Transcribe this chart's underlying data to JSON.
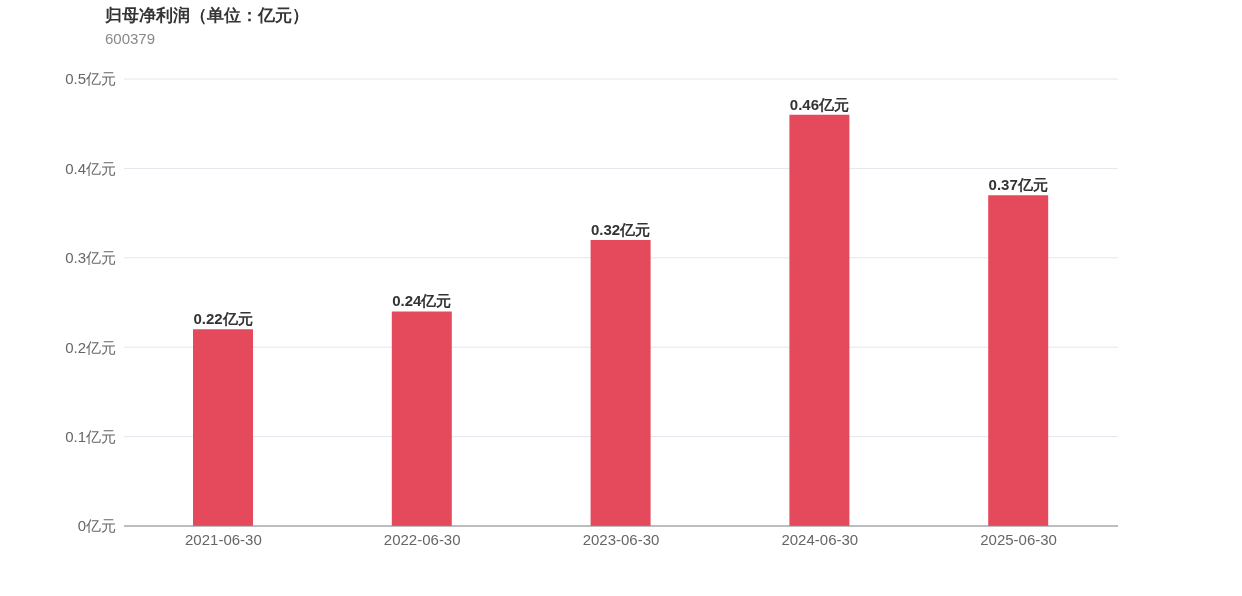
{
  "chart_data": {
    "type": "bar",
    "title": "归母净利润（单位：亿元）",
    "subtitle": "600379",
    "categories": [
      "2021-06-30",
      "2022-06-30",
      "2023-06-30",
      "2024-06-30",
      "2025-06-30"
    ],
    "values": [
      0.22,
      0.24,
      0.32,
      0.46,
      0.37
    ],
    "value_labels": [
      "0.22亿元",
      "0.24亿元",
      "0.32亿元",
      "0.46亿元",
      "0.37亿元"
    ],
    "color": "#e5495c",
    "ylim": [
      0,
      0.5
    ],
    "yticks": [
      {
        "value": 0,
        "label": "0亿元"
      },
      {
        "value": 0.1,
        "label": "0.1亿元"
      },
      {
        "value": 0.2,
        "label": "0.2亿元"
      },
      {
        "value": 0.3,
        "label": "0.3亿元"
      },
      {
        "value": 0.4,
        "label": "0.4亿元"
      },
      {
        "value": 0.5,
        "label": "0.5亿元"
      }
    ],
    "grid": "y"
  }
}
